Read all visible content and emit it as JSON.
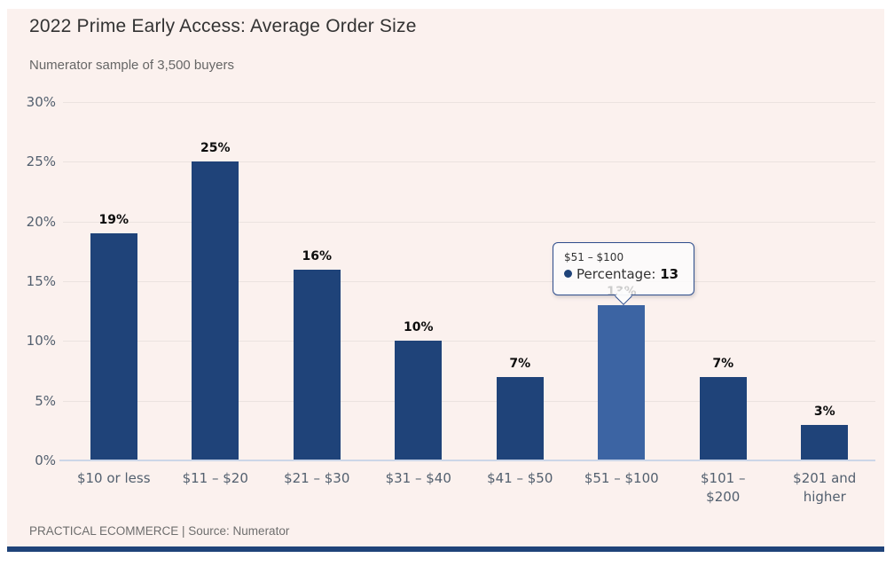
{
  "header": {
    "title": "2022 Prime Early Access: Average Order Size",
    "subtitle": "Numerator sample of 3,500 buyers"
  },
  "chart_data": {
    "type": "bar",
    "title": "2022 Prime Early Access: Average Order Size",
    "subtitle": "Numerator sample of 3,500 buyers",
    "categories": [
      "$10 or less",
      "$11 – $20",
      "$21 – $30",
      "$31 – $40",
      "$41 – $50",
      "$51 – $100",
      "$101 – $200",
      "$201 and higher"
    ],
    "categories_display": [
      "$10 or less",
      "$11 – $20",
      "$21 – $30",
      "$31 – $40",
      "$41 – $50",
      "$51 – $100",
      "$101 –\n$200",
      "$201 and\nhigher"
    ],
    "series": [
      {
        "name": "Percentage",
        "values": [
          19,
          25,
          16,
          10,
          7,
          13,
          7,
          3
        ]
      }
    ],
    "data_labels": [
      "19%",
      "25%",
      "16%",
      "10%",
      "7%",
      "13%",
      "7%",
      "3%"
    ],
    "ylim": [
      0,
      30
    ],
    "yticks": [
      "0%",
      "5%",
      "10%",
      "15%",
      "20%",
      "25%",
      "30%"
    ],
    "ytick_values": [
      0,
      5,
      10,
      15,
      20,
      25,
      30
    ],
    "grid": true,
    "legend": "none",
    "highlight_index": 5,
    "bar_color": "#1f4379",
    "bar_color_highlight": "#3c64a3"
  },
  "tooltip": {
    "category": "$51 – $100",
    "series_label": "Percentage",
    "separator": ": ",
    "value": "13",
    "marker_color": "#1f4379"
  },
  "footer": {
    "credit": "PRACTICAL ECOMMERCE | Source: Numerator"
  },
  "colors": {
    "card_background": "#fbf1ee",
    "accent_bar": "#1f4379",
    "axis_line": "#ccd6e8",
    "gridline": "#ebe2df",
    "axis_text": "#53606f",
    "tooltip_border": "#2e4d8c"
  }
}
